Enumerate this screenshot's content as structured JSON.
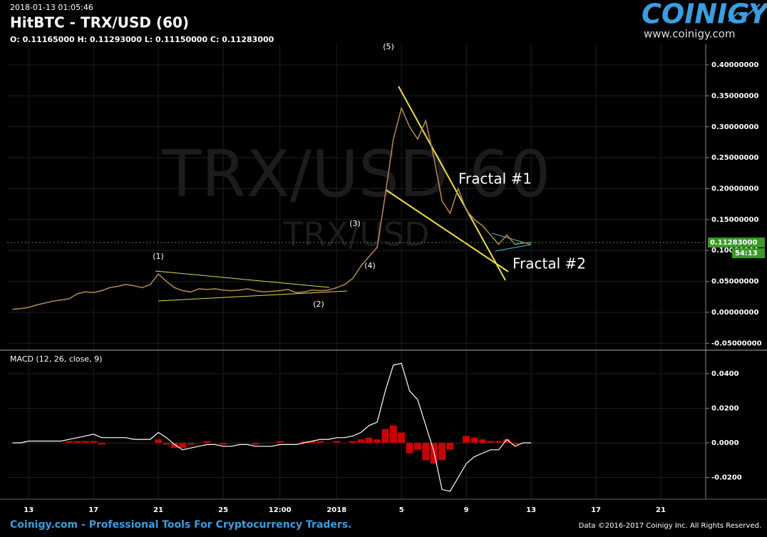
{
  "header": {
    "timestamp": "2018-01-13 01:05:46"
  },
  "logo": {
    "name": "COINIGY",
    "url": "www.coinigy.com"
  },
  "footer": {
    "left": "Coinigy.com - Professional Tools For Cryptocurrency Traders.",
    "right": "Data ©2016-2017 Coinigy Inc. All Rights Reserved."
  },
  "chart_data": [
    {
      "type": "line",
      "title": "HitBTC - TRX/USD (60)",
      "subtitle": "O: 0.11165000 H: 0.11293000 L: 0.11150000 C: 0.11283000",
      "watermark": [
        "TRX/USD 60",
        "TRX/USD"
      ],
      "annotations": [
        "(1)",
        "(2)",
        "(3)",
        "(4)",
        "(5)",
        "Fractal #1",
        "Fractal #2"
      ],
      "categories": [
        null,
        null,
        "13",
        null,
        null,
        null,
        null,
        null,
        null,
        null,
        "17",
        null,
        null,
        null,
        null,
        null,
        null,
        null,
        "21",
        null,
        null,
        null,
        null,
        null,
        null,
        null,
        "25",
        null,
        null,
        null,
        null,
        null,
        null,
        "12:00",
        null,
        null,
        null,
        null,
        null,
        null,
        "2018",
        null,
        null,
        null,
        null,
        null,
        null,
        null,
        "5",
        null,
        null,
        null,
        null,
        null,
        null,
        null,
        "9",
        null,
        null,
        null,
        null,
        null,
        null,
        null,
        "13",
        null,
        null,
        null,
        null,
        null,
        null,
        null,
        "17",
        null,
        null,
        null,
        null,
        null,
        null,
        null,
        "21",
        null,
        null,
        null,
        null,
        null,
        null
      ],
      "values": [
        0.005,
        0.006,
        0.008,
        0.012,
        0.015,
        0.018,
        0.02,
        0.022,
        0.03,
        0.033,
        0.032,
        0.035,
        0.04,
        0.042,
        0.045,
        0.043,
        0.04,
        0.045,
        0.062,
        0.05,
        0.04,
        0.035,
        0.033,
        0.038,
        0.037,
        0.038,
        0.036,
        0.035,
        0.036,
        0.038,
        0.035,
        0.033,
        0.034,
        0.035,
        0.037,
        0.032,
        0.033,
        0.036,
        0.035,
        0.036,
        0.04,
        0.045,
        0.055,
        0.075,
        0.09,
        0.105,
        0.19,
        0.28,
        0.33,
        0.3,
        0.28,
        0.31,
        0.25,
        0.18,
        0.16,
        0.2,
        0.165,
        0.15,
        0.14,
        0.125,
        0.11,
        0.125,
        0.11,
        0.112,
        0.1128,
        null,
        null,
        null,
        null,
        null,
        null,
        null,
        null,
        null,
        null,
        null,
        null,
        null,
        null,
        null,
        null,
        null,
        null,
        null,
        null,
        null,
        null
      ],
      "color": "#b58a5a",
      "ylim": [
        -0.06,
        0.43
      ],
      "yticks": [
        {
          "value": 0.4,
          "label": "0.40000000"
        },
        {
          "value": 0.35,
          "label": "0.35000000"
        },
        {
          "value": 0.3,
          "label": "0.30000000"
        },
        {
          "value": 0.25,
          "label": "0.25000000"
        },
        {
          "value": 0.2,
          "label": "0.20000000"
        },
        {
          "value": 0.15,
          "label": "0.15000000"
        },
        {
          "value": 0.1,
          "label": "0.10000000"
        },
        {
          "value": 0.05,
          "label": "0.05000000"
        },
        {
          "value": 0,
          "label": "0.00000000"
        },
        {
          "value": -0.05,
          "label": "-0.05000000"
        }
      ],
      "last_price": {
        "value": 0.11283,
        "label": "0.11283000"
      },
      "countdown": "54:13",
      "grid": true
    },
    {
      "type": "macd",
      "title": "MACD (12, 26, close, 9)",
      "values": [
        0.0,
        0.0,
        0.001,
        0.001,
        0.001,
        0.001,
        0.001,
        0.002,
        0.003,
        0.004,
        0.005,
        0.003,
        0.003,
        0.003,
        0.003,
        0.002,
        0.002,
        0.002,
        0.006,
        0.003,
        -0.001,
        -0.004,
        -0.003,
        -0.002,
        -0.001,
        -0.001,
        -0.002,
        -0.002,
        -0.001,
        -0.001,
        -0.002,
        -0.002,
        -0.002,
        -0.001,
        -0.001,
        -0.001,
        0.0,
        0.001,
        0.002,
        0.002,
        0.003,
        0.003,
        0.004,
        0.006,
        0.01,
        0.012,
        0.03,
        0.045,
        0.046,
        0.03,
        0.025,
        0.01,
        -0.005,
        -0.027,
        -0.028,
        -0.02,
        -0.012,
        -0.008,
        -0.006,
        -0.004,
        -0.004,
        0.002,
        -0.002,
        0.0,
        0.0,
        null,
        null,
        null,
        null,
        null,
        null,
        null,
        null,
        null,
        null,
        null,
        null,
        null,
        null,
        null,
        null,
        null,
        null,
        null,
        null,
        null,
        null
      ],
      "histogram": [
        0.0,
        0.0,
        0.0,
        0.0,
        0.0,
        0.0,
        0.0,
        0.001,
        0.001,
        0.001,
        0.001,
        -0.001,
        0.0,
        0.0,
        0.0,
        0.0,
        0.0,
        0.0,
        0.002,
        -0.001,
        -0.003,
        -0.003,
        -0.001,
        0.0,
        0.001,
        0.0,
        -0.001,
        0.0,
        0.0,
        0.0,
        -0.001,
        0.0,
        0.0,
        0.001,
        0.0,
        0.0,
        0.001,
        0.001,
        0.001,
        0.0,
        0.001,
        0.0,
        0.001,
        0.002,
        0.003,
        0.002,
        0.008,
        0.01,
        0.006,
        -0.006,
        -0.004,
        -0.01,
        -0.012,
        -0.01,
        -0.004,
        0.0,
        0.004,
        0.003,
        0.002,
        0.001,
        0.001,
        0.002,
        -0.001,
        0.0,
        0.0,
        null,
        null,
        null,
        null,
        null,
        null,
        null,
        null,
        null,
        null,
        null,
        null,
        null,
        null,
        null,
        null,
        null,
        null,
        null,
        null,
        null,
        null
      ],
      "color": "#ffffff",
      "histogram_color": "#cc0000",
      "ylim": [
        -0.0326,
        0.0532
      ],
      "yticks": [
        {
          "value": 0.04,
          "label": "0.0400"
        },
        {
          "value": 0.02,
          "label": "0.0200"
        },
        {
          "value": 0,
          "label": "0.0000"
        },
        {
          "value": -0.02,
          "label": "-0.0200"
        }
      ],
      "grid": true
    }
  ]
}
